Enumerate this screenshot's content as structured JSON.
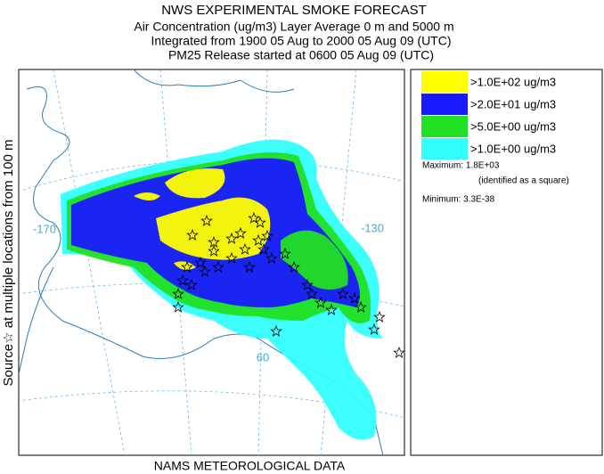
{
  "header": {
    "title": "NWS EXPERIMENTAL SMOKE FORECAST",
    "lines": [
      "Air Concentration (ug/m3) Layer Average    0 m and  5000 m",
      "Integrated from 1900 05 Aug to 2000 05 Aug 09 (UTC)",
      "PM25 Release started at 0600 05 Aug 09 (UTC)"
    ]
  },
  "side_label": "Source☆ at multiple locations   from   100 m",
  "footer": "NAMS METEOROLOGICAL DATA",
  "legend": [
    {
      "label": ">1.0E+02 ug/m3",
      "color": "#ffff00"
    },
    {
      "label": ">2.0E+01 ug/m3",
      "color": "#1a1aff"
    },
    {
      "label": ">5.0E+00 ug/m3",
      "color": "#22e022"
    },
    {
      "label": ">1.0E+00 ug/m3",
      "color": "#33ffff"
    }
  ],
  "maximum": "Maximum: 1.8E+03",
  "maximum_note": "(identified as a square)",
  "minimum": "Minimum: 3.3E-38",
  "map_labels": [
    "-170",
    "-130",
    "60"
  ]
}
